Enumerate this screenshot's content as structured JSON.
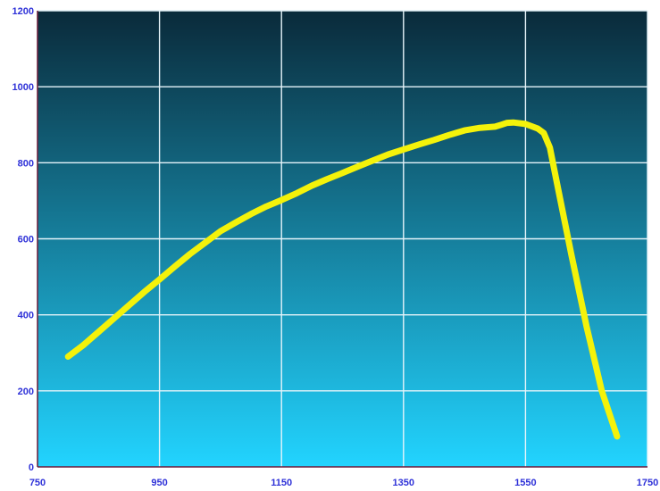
{
  "colors": {
    "plot_top": "#0a2a3a",
    "plot_bottom": "#22d4ff",
    "grid": "#e6f4fa",
    "line": "#f4f20a",
    "tick_label": "#2f32d8",
    "axis": "#6a1a3a"
  },
  "chart_data": {
    "type": "line",
    "title": "",
    "xlabel": "",
    "ylabel": "",
    "xlim": [
      750,
      1750
    ],
    "ylim": [
      0,
      1200
    ],
    "x_ticks": [
      "750",
      "950",
      "1150",
      "1350",
      "1550",
      "1750"
    ],
    "y_ticks": [
      "0",
      "200",
      "400",
      "600",
      "800",
      "1000",
      "1200"
    ],
    "grid": true,
    "legend": "none",
    "series": [
      {
        "x": [
          800,
          825,
          850,
          875,
          900,
          925,
          950,
          975,
          1000,
          1025,
          1050,
          1075,
          1100,
          1125,
          1150,
          1175,
          1200,
          1225,
          1250,
          1275,
          1300,
          1325,
          1350,
          1375,
          1400,
          1425,
          1450,
          1475,
          1500,
          1510,
          1520,
          1530,
          1550,
          1570,
          1580,
          1590,
          1600,
          1625,
          1650,
          1675,
          1700
        ],
        "y": [
          290,
          320,
          355,
          390,
          425,
          460,
          493,
          527,
          560,
          590,
          620,
          643,
          665,
          685,
          702,
          720,
          740,
          757,
          773,
          790,
          806,
          822,
          835,
          848,
          860,
          873,
          885,
          892,
          895,
          900,
          905,
          906,
          902,
          890,
          878,
          840,
          760,
          560,
          370,
          200,
          80
        ]
      }
    ]
  }
}
